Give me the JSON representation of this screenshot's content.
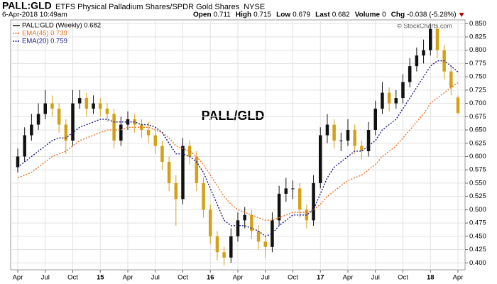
{
  "chart_data": {
    "type": "candlestick",
    "symbol": "PALL:GLD",
    "description": "ETFS Physical Palladium Shares/SPDR Gold Shares",
    "exchange": "NYSE",
    "date": "6-Apr-2018 10:49am",
    "quote": [
      {
        "label": "Open",
        "value": "0.711"
      },
      {
        "label": "High",
        "value": "0.715"
      },
      {
        "label": "Low",
        "value": "0.679"
      },
      {
        "label": "Last",
        "value": "0.682"
      },
      {
        "label": "Volume",
        "value": "0"
      },
      {
        "label": "Chg",
        "value": "-0.038 (-5.28%)"
      }
    ],
    "source": "© StockCharts.com",
    "annotation": "PALL/GLD",
    "categories": [
      "Apr",
      null,
      null,
      null,
      "Jul",
      null,
      null,
      null,
      "Oct",
      null,
      null,
      null,
      "15",
      null,
      null,
      null,
      "Apr",
      null,
      null,
      null,
      "Jul",
      null,
      null,
      null,
      "Oct",
      null,
      null,
      null,
      "16",
      null,
      null,
      null,
      "Apr",
      null,
      null,
      null,
      "Jul",
      null,
      null,
      null,
      "Oct",
      null,
      null,
      null,
      "17",
      null,
      null,
      null,
      "Apr",
      null,
      null,
      null,
      "Jul",
      null,
      null,
      null,
      "Oct",
      null,
      null,
      null,
      "18",
      null,
      null,
      null,
      "Apr"
    ],
    "price": {
      "name": "PALL:GLD (Weekly) 0.682",
      "up_color": "#111111",
      "down_color": "#d4a017",
      "open": [
        0.58,
        0.6,
        0.64,
        0.66,
        0.68,
        0.7,
        0.69,
        0.66,
        0.63,
        0.7,
        0.71,
        0.69,
        0.7,
        0.69,
        0.68,
        0.63,
        0.66,
        0.67,
        0.66,
        0.65,
        0.64,
        0.62,
        0.59,
        0.55,
        0.52,
        0.62,
        0.6,
        0.55,
        0.5,
        0.45,
        0.42,
        0.41,
        0.45,
        0.48,
        0.49,
        0.46,
        0.44,
        0.43,
        0.48,
        0.53,
        0.54,
        0.54,
        0.5,
        0.48,
        0.55,
        0.64,
        0.66,
        0.63,
        0.63,
        0.65,
        0.62,
        0.61,
        0.65,
        0.69,
        0.72,
        0.7,
        0.71,
        0.74,
        0.77,
        0.79,
        0.8,
        0.84,
        0.8,
        0.76,
        0.711
      ],
      "high": [
        0.615,
        0.655,
        0.68,
        0.7,
        0.725,
        0.715,
        0.7,
        0.67,
        0.725,
        0.725,
        0.72,
        0.715,
        0.71,
        0.7,
        0.69,
        0.675,
        0.685,
        0.68,
        0.67,
        0.665,
        0.65,
        0.63,
        0.6,
        0.565,
        0.635,
        0.63,
        0.61,
        0.56,
        0.51,
        0.46,
        0.43,
        0.465,
        0.495,
        0.505,
        0.5,
        0.47,
        0.45,
        0.495,
        0.545,
        0.56,
        0.555,
        0.55,
        0.51,
        0.565,
        0.655,
        0.68,
        0.67,
        0.645,
        0.67,
        0.66,
        0.63,
        0.665,
        0.705,
        0.74,
        0.73,
        0.725,
        0.755,
        0.785,
        0.805,
        0.82,
        0.85,
        0.845,
        0.81,
        0.77,
        0.715
      ],
      "low": [
        0.57,
        0.59,
        0.63,
        0.65,
        0.67,
        0.675,
        0.645,
        0.605,
        0.62,
        0.69,
        0.675,
        0.68,
        0.675,
        0.665,
        0.615,
        0.62,
        0.65,
        0.645,
        0.635,
        0.625,
        0.605,
        0.575,
        0.535,
        0.47,
        0.51,
        0.585,
        0.535,
        0.485,
        0.435,
        0.405,
        0.395,
        0.4,
        0.44,
        0.465,
        0.445,
        0.425,
        0.41,
        0.42,
        0.47,
        0.515,
        0.52,
        0.485,
        0.465,
        0.47,
        0.54,
        0.625,
        0.615,
        0.61,
        0.62,
        0.605,
        0.595,
        0.6,
        0.64,
        0.68,
        0.685,
        0.69,
        0.7,
        0.73,
        0.76,
        0.775,
        0.79,
        0.785,
        0.745,
        0.715,
        0.679
      ],
      "close": [
        0.6,
        0.64,
        0.66,
        0.68,
        0.7,
        0.69,
        0.66,
        0.63,
        0.7,
        0.71,
        0.69,
        0.7,
        0.69,
        0.68,
        0.63,
        0.66,
        0.67,
        0.66,
        0.65,
        0.64,
        0.62,
        0.59,
        0.55,
        0.52,
        0.62,
        0.6,
        0.55,
        0.5,
        0.45,
        0.42,
        0.41,
        0.45,
        0.48,
        0.49,
        0.46,
        0.44,
        0.43,
        0.48,
        0.53,
        0.54,
        0.54,
        0.5,
        0.48,
        0.55,
        0.64,
        0.66,
        0.63,
        0.63,
        0.65,
        0.62,
        0.61,
        0.65,
        0.69,
        0.72,
        0.7,
        0.71,
        0.74,
        0.77,
        0.79,
        0.8,
        0.84,
        0.8,
        0.76,
        0.73,
        0.682
      ]
    },
    "series": [
      {
        "name": "EMA(45) 0.739",
        "color": "#f07020",
        "values": [
          0.56,
          0.565,
          0.57,
          0.58,
          0.59,
          0.6,
          0.605,
          0.61,
          0.62,
          0.63,
          0.635,
          0.64,
          0.645,
          0.65,
          0.65,
          0.65,
          0.655,
          0.655,
          0.655,
          0.655,
          0.65,
          0.645,
          0.635,
          0.62,
          0.615,
          0.61,
          0.6,
          0.585,
          0.565,
          0.545,
          0.525,
          0.51,
          0.5,
          0.495,
          0.49,
          0.485,
          0.48,
          0.48,
          0.485,
          0.49,
          0.495,
          0.495,
          0.495,
          0.5,
          0.51,
          0.525,
          0.535,
          0.545,
          0.555,
          0.56,
          0.565,
          0.575,
          0.585,
          0.6,
          0.61,
          0.62,
          0.635,
          0.65,
          0.665,
          0.68,
          0.7,
          0.71,
          0.72,
          0.73,
          0.739
        ]
      },
      {
        "name": "EMA(20) 0.759",
        "color": "#1a1a8c",
        "values": [
          0.58,
          0.59,
          0.6,
          0.61,
          0.62,
          0.63,
          0.635,
          0.635,
          0.645,
          0.655,
          0.66,
          0.665,
          0.67,
          0.67,
          0.665,
          0.665,
          0.665,
          0.665,
          0.66,
          0.66,
          0.655,
          0.645,
          0.625,
          0.605,
          0.605,
          0.6,
          0.59,
          0.57,
          0.54,
          0.51,
          0.48,
          0.47,
          0.47,
          0.47,
          0.465,
          0.46,
          0.45,
          0.455,
          0.47,
          0.48,
          0.49,
          0.49,
          0.49,
          0.5,
          0.53,
          0.56,
          0.58,
          0.59,
          0.6,
          0.61,
          0.61,
          0.62,
          0.63,
          0.65,
          0.66,
          0.67,
          0.69,
          0.71,
          0.73,
          0.75,
          0.77,
          0.78,
          0.78,
          0.77,
          0.759
        ]
      }
    ],
    "ylim": [
      0.387,
      0.857
    ],
    "yticks": [
      {
        "value": 0.4,
        "label": "0.400"
      },
      {
        "value": 0.425,
        "label": "0.425"
      },
      {
        "value": 0.45,
        "label": "0.450"
      },
      {
        "value": 0.475,
        "label": "0.475"
      },
      {
        "value": 0.5,
        "label": "0.500"
      },
      {
        "value": 0.525,
        "label": "0.525"
      },
      {
        "value": 0.55,
        "label": "0.550"
      },
      {
        "value": 0.575,
        "label": "0.575"
      },
      {
        "value": 0.6,
        "label": "0.600"
      },
      {
        "value": 0.625,
        "label": "0.625"
      },
      {
        "value": 0.65,
        "label": "0.650"
      },
      {
        "value": 0.675,
        "label": "0.675"
      },
      {
        "value": 0.7,
        "label": "0.700"
      },
      {
        "value": 0.725,
        "label": "0.725"
      },
      {
        "value": 0.75,
        "label": "0.750"
      },
      {
        "value": 0.775,
        "label": "0.775"
      },
      {
        "value": 0.8,
        "label": "0.800"
      },
      {
        "value": 0.825,
        "label": "0.825"
      },
      {
        "value": 0.85,
        "label": "0.850"
      }
    ],
    "grid": true
  }
}
